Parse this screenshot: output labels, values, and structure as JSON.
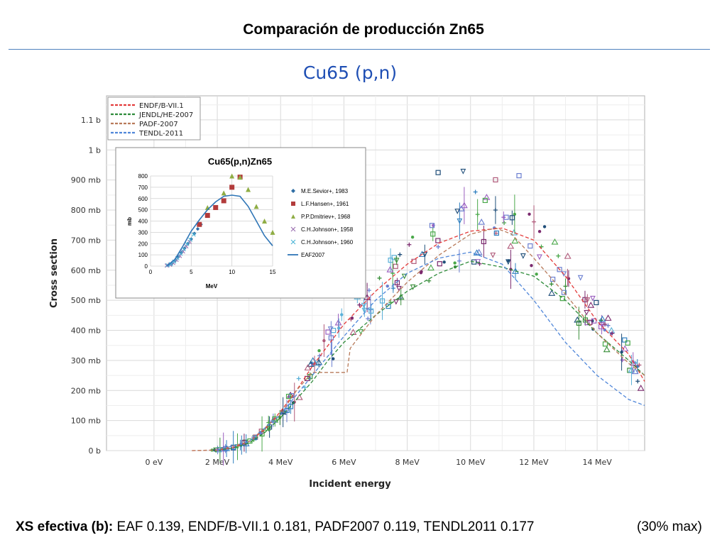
{
  "slide": {
    "title": "Comparación de producción Zn65",
    "footer_label": "XS efectiva (b):",
    "footer_values": " EAF 0.139, ENDF/B-VII.1 0.181, PADF2007 0.119, TENDL2011 0.177",
    "footer_max": "(30% max)"
  },
  "colors": {
    "title_rule": "#4f81bd",
    "plot_title": "#1f4fb4",
    "endf": "#e33b3b",
    "jendl": "#2e8b3a",
    "padf": "#b87a5a",
    "tendl": "#4f86d9",
    "eaf": "#2e75b6"
  },
  "chart_data": [
    {
      "type": "line",
      "title": "Cu65 (p,n)",
      "xlabel": "Incident energy",
      "ylabel": "Cross section",
      "xlim": [
        -1.5,
        15.5
      ],
      "ylim": [
        0,
        1.18
      ],
      "grid": true,
      "legend_position": "top-left",
      "xticks": [
        0,
        2,
        4,
        6,
        8,
        10,
        12,
        14
      ],
      "xtick_labels": [
        "0 eV",
        "2 MeV",
        "4 MeV",
        "6 MeV",
        "8 MeV",
        "10 MeV",
        "12 MeV",
        "14 MeV"
      ],
      "yticks": [
        0,
        0.1,
        0.2,
        0.3,
        0.4,
        0.5,
        0.6,
        0.7,
        0.8,
        0.9,
        1.0,
        1.1
      ],
      "ytick_labels": [
        "0 b",
        "100 mb",
        "200 mb",
        "300 mb",
        "400 mb",
        "500 mb",
        "600 mb",
        "700 mb",
        "800 mb",
        "900 mb",
        "1 b",
        "1.1 b"
      ],
      "series": [
        {
          "name": "ENDF/B-VII.1",
          "style": "dashed",
          "color": "#e33b3b",
          "points": [
            [
              1.2,
              0
            ],
            [
              2,
              0.002
            ],
            [
              2.5,
              0.01
            ],
            [
              3,
              0.03
            ],
            [
              3.5,
              0.07
            ],
            [
              4,
              0.13
            ],
            [
              4.5,
              0.2
            ],
            [
              5,
              0.28
            ],
            [
              5.5,
              0.35
            ],
            [
              6,
              0.42
            ],
            [
              7,
              0.53
            ],
            [
              8,
              0.62
            ],
            [
              9,
              0.69
            ],
            [
              10,
              0.73
            ],
            [
              11,
              0.74
            ],
            [
              12,
              0.7
            ],
            [
              13,
              0.58
            ],
            [
              14,
              0.43
            ],
            [
              15,
              0.32
            ],
            [
              15.5,
              0.23
            ]
          ]
        },
        {
          "name": "JENDL/HE-2007",
          "style": "dashed",
          "color": "#2e8b3a",
          "points": [
            [
              2,
              0.002
            ],
            [
              2.5,
              0.008
            ],
            [
              3,
              0.025
            ],
            [
              3.5,
              0.06
            ],
            [
              4,
              0.11
            ],
            [
              4.5,
              0.17
            ],
            [
              5,
              0.23
            ],
            [
              5.5,
              0.3
            ],
            [
              6,
              0.36
            ],
            [
              7,
              0.45
            ],
            [
              8,
              0.53
            ],
            [
              9,
              0.59
            ],
            [
              10,
              0.63
            ],
            [
              11,
              0.61
            ],
            [
              12,
              0.58
            ],
            [
              13,
              0.5
            ],
            [
              14,
              0.39
            ],
            [
              15,
              0.3
            ],
            [
              15.5,
              0.25
            ]
          ]
        },
        {
          "name": "PADF-2007",
          "style": "dashed",
          "color": "#b87a5a",
          "points": [
            [
              1.2,
              0
            ],
            [
              2,
              0.002
            ],
            [
              3,
              0.03
            ],
            [
              4,
              0.12
            ],
            [
              4.5,
              0.2
            ],
            [
              5,
              0.26
            ],
            [
              5.4,
              0.26
            ],
            [
              5.5,
              0.26
            ],
            [
              6.1,
              0.26
            ],
            [
              6.2,
              0.34
            ],
            [
              7,
              0.45
            ],
            [
              8,
              0.56
            ],
            [
              9,
              0.65
            ],
            [
              10,
              0.72
            ],
            [
              10.8,
              0.74
            ],
            [
              11.3,
              0.72
            ],
            [
              12,
              0.64
            ],
            [
              13,
              0.52
            ],
            [
              14,
              0.39
            ],
            [
              15,
              0.29
            ],
            [
              15.5,
              0.25
            ]
          ]
        },
        {
          "name": "TENDL-2011",
          "style": "dashed",
          "color": "#4f86d9",
          "points": [
            [
              2,
              0.002
            ],
            [
              3,
              0.03
            ],
            [
              4,
              0.12
            ],
            [
              5,
              0.25
            ],
            [
              6,
              0.38
            ],
            [
              7,
              0.5
            ],
            [
              8,
              0.59
            ],
            [
              9,
              0.64
            ],
            [
              10,
              0.66
            ],
            [
              11,
              0.62
            ],
            [
              12,
              0.5
            ],
            [
              13,
              0.36
            ],
            [
              14,
              0.25
            ],
            [
              15,
              0.17
            ],
            [
              15.5,
              0.15
            ]
          ]
        }
      ]
    },
    {
      "type": "scatter",
      "title": "Cu65(p,n)Zn65",
      "xlabel": "MeV",
      "ylabel": "mb",
      "xlim": [
        0,
        15
      ],
      "ylim": [
        0,
        800
      ],
      "grid": true,
      "legend_position": "right",
      "xticks": [
        0,
        5,
        10,
        15
      ],
      "xtick_labels": [
        "0",
        "5",
        "10",
        "15"
      ],
      "yticks": [
        0,
        100,
        200,
        300,
        400,
        500,
        600,
        700,
        800
      ],
      "ytick_labels": [
        "0",
        "100",
        "200",
        "300",
        "400",
        "500",
        "600",
        "700",
        "800"
      ],
      "series": [
        {
          "name": "M.E.Sevior+, 1983",
          "marker": "diamond",
          "color": "#2e6da4",
          "points": [
            [
              2.2,
              10
            ],
            [
              2.6,
              20
            ],
            [
              3.0,
              45
            ],
            [
              3.4,
              80
            ],
            [
              3.8,
              120
            ],
            [
              4.2,
              160
            ],
            [
              4.6,
              200
            ],
            [
              5.0,
              240
            ],
            [
              5.4,
              290
            ],
            [
              5.8,
              330
            ],
            [
              6.2,
              370
            ]
          ]
        },
        {
          "name": "L.F.Hansen+, 1961",
          "marker": "square",
          "color": "#b23b3b",
          "points": [
            [
              6,
              370
            ],
            [
              7,
              450
            ],
            [
              8,
              520
            ],
            [
              9,
              580
            ],
            [
              10,
              700
            ],
            [
              11,
              790
            ]
          ]
        },
        {
          "name": "P.P.Dmitriev+, 1968",
          "marker": "triangle",
          "color": "#8fad44",
          "points": [
            [
              7,
              520
            ],
            [
              9,
              650
            ],
            [
              10,
              800
            ],
            [
              11,
              790
            ],
            [
              12,
              680
            ],
            [
              13,
              530
            ],
            [
              14,
              400
            ],
            [
              15,
              300
            ]
          ]
        },
        {
          "name": "C.H.Johnson+, 1958",
          "marker": "x",
          "color": "#9a6fb0",
          "points": [
            [
              2,
              5
            ],
            [
              2.4,
              12
            ],
            [
              2.8,
              28
            ],
            [
              3.2,
              55
            ],
            [
              3.6,
              90
            ],
            [
              4,
              130
            ],
            [
              4.4,
              175
            ],
            [
              4.8,
              215
            ]
          ]
        },
        {
          "name": "C.H.Johnson+, 1960",
          "marker": "x",
          "color": "#4ab4d6",
          "points": [
            [
              2.1,
              8
            ],
            [
              2.5,
              18
            ],
            [
              2.9,
              40
            ],
            [
              3.3,
              70
            ],
            [
              3.7,
              110
            ],
            [
              4.1,
              150
            ],
            [
              4.5,
              195
            ],
            [
              4.9,
              235
            ],
            [
              5.3,
              280
            ]
          ]
        },
        {
          "name": "EAF2007",
          "marker": "line",
          "color": "#2e75b6",
          "points": [
            [
              2,
              0
            ],
            [
              3,
              60
            ],
            [
              4,
              180
            ],
            [
              5,
              310
            ],
            [
              6,
              410
            ],
            [
              7,
              500
            ],
            [
              8,
              570
            ],
            [
              9,
              620
            ],
            [
              10,
              630
            ],
            [
              11,
              620
            ],
            [
              12,
              530
            ],
            [
              13,
              400
            ],
            [
              14,
              270
            ],
            [
              15,
              180
            ]
          ]
        }
      ]
    }
  ]
}
